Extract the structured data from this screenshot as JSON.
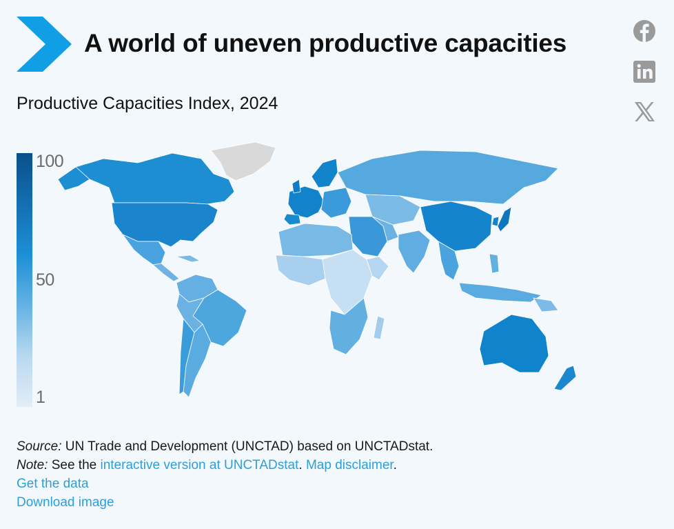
{
  "header": {
    "title": "A world of uneven productive capacities",
    "subtitle": "Productive Capacities Index, 2024",
    "logo_icon": "chevron-logo-icon",
    "brand_color": "#109fe4"
  },
  "share": [
    {
      "name": "facebook-icon",
      "label": "Facebook"
    },
    {
      "name": "linkedin-icon",
      "label": "LinkedIn"
    },
    {
      "name": "x-icon",
      "label": "X"
    }
  ],
  "legend": {
    "max": "100",
    "mid": "50",
    "min": "1",
    "color_high": "#0a4f8c",
    "color_low": "#e2edf6",
    "no_data_color": "#d9d9d9"
  },
  "map": {
    "type": "choropleth",
    "variable": "Productive Capacities Index",
    "year": 2024
  },
  "footer": {
    "source_label": "Source:",
    "source_text": " UN Trade and Development (UNCTAD) based on UNCTADstat.",
    "note_label": "Note:",
    "note_pre": " See the ",
    "note_link": "interactive version at UNCTADstat",
    "note_mid": ". ",
    "disclaimer_link": "Map disclaimer",
    "note_end": ".",
    "get_data": "Get the data",
    "download": "Download image",
    "link_color": "#2f9ed8"
  }
}
